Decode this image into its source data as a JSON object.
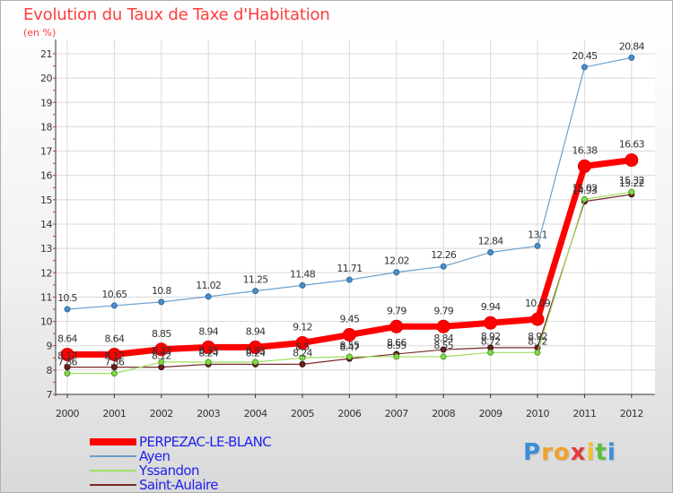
{
  "chart_data": {
    "type": "line",
    "title": "Evolution du Taux de Taxe d'Habitation",
    "ylabel": "(en %)",
    "xlabel": "",
    "x": [
      "2000",
      "2001",
      "2002",
      "2003",
      "2004",
      "2005",
      "2006",
      "2007",
      "2008",
      "2009",
      "2010",
      "2011",
      "2012"
    ],
    "ylim": [
      7,
      21
    ],
    "yticks": [
      7,
      8,
      9,
      10,
      11,
      12,
      13,
      14,
      15,
      16,
      17,
      18,
      19,
      20,
      21
    ],
    "grid": true,
    "series": [
      {
        "name": "PERPEZAC-LE-BLANC",
        "color": "#ff0000",
        "values": [
          8.64,
          8.64,
          8.85,
          8.94,
          8.94,
          9.12,
          9.45,
          9.79,
          9.79,
          9.94,
          10.09,
          16.38,
          16.63
        ],
        "labels": [
          "8.64",
          "8.64",
          "8.85",
          "8.94",
          "8.94",
          "9.12",
          "9.45",
          "9.79",
          "9.79",
          "9.94",
          "10.09",
          "16.38",
          "16.63"
        ]
      },
      {
        "name": "Ayen",
        "color": "#6da0cc",
        "values": [
          10.5,
          10.65,
          10.8,
          11.02,
          11.25,
          11.48,
          11.71,
          12.02,
          12.26,
          12.84,
          13.1,
          20.45,
          20.84
        ],
        "labels": [
          "10.5",
          "10.65",
          "10.8",
          "11.02",
          "11.25",
          "11.48",
          "11.71",
          "12.02",
          "12.26",
          "12.84",
          "13.1",
          "20.45",
          "20.84"
        ]
      },
      {
        "name": "Yssandon",
        "color": "#9de05a",
        "values": [
          7.86,
          7.86,
          8.33,
          8.33,
          8.33,
          8.5,
          8.55,
          8.55,
          8.55,
          8.72,
          8.72,
          15.02,
          15.32
        ],
        "labels": [
          "7.86",
          "7.86",
          "8.33",
          "8.33",
          "8.33",
          "8.5",
          "8.55",
          "8.55",
          "8.55",
          "8.72",
          "8.72",
          "15.02",
          "15.32"
        ]
      },
      {
        "name": "Saint-Aulaire",
        "color": "#7a2a2a",
        "values": [
          8.12,
          8.12,
          8.12,
          8.24,
          8.24,
          8.24,
          8.47,
          8.66,
          8.84,
          8.92,
          8.92,
          14.93,
          15.22
        ],
        "labels": [
          "8.12",
          "8.12",
          "8.12",
          "8.24",
          "8.24",
          "8.24",
          "8.47",
          "8.66",
          "8.84",
          "8.92",
          "8.92",
          "14.93",
          "15.22"
        ]
      }
    ],
    "legend": "bottom-left"
  },
  "logo": {
    "letters": [
      "P",
      "r",
      "o",
      "x",
      "i",
      "t",
      "i"
    ],
    "colors": [
      "#3a8fd8",
      "#f2a12c",
      "#f2a12c",
      "#e53b3b",
      "#f0c22c",
      "#5bbf3c",
      "#3a8fd8"
    ]
  }
}
